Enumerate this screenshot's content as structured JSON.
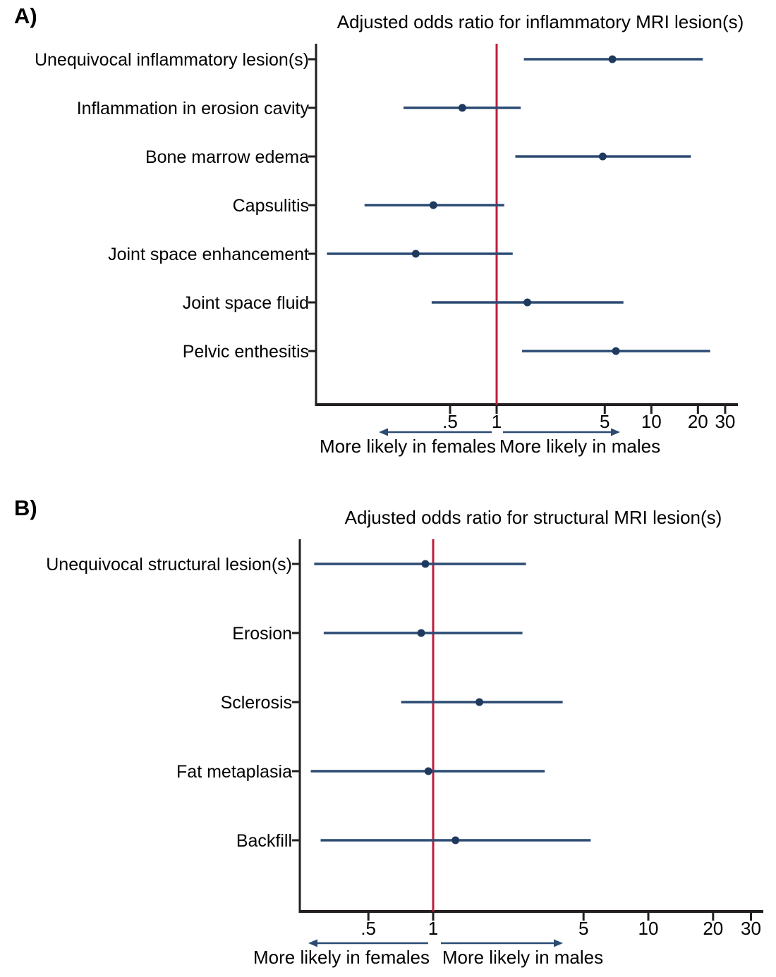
{
  "colors": {
    "ci_line": "#2c4b73",
    "marker": "#1e3a5f",
    "ref_line": "#be1e3c",
    "axis": "#231f20",
    "text": "#000000"
  },
  "chart_data": [
    {
      "type": "scatter",
      "subtype": "forest-plot",
      "panel_label": "A)",
      "title": "Adjusted odds ratio for inflammatory MRI lesion(s)",
      "xscale": "log",
      "xlim": [
        0.068,
        36
      ],
      "reference_line": 1,
      "x_ticks": [
        0.5,
        1,
        5,
        10,
        20,
        30
      ],
      "x_tick_labels": [
        ".5",
        "1",
        "5",
        "10",
        "20",
        "30"
      ],
      "grid": false,
      "rows": [
        {
          "label": "Unequivocal inflammatory lesion(s)",
          "estimate": 5.6,
          "ci_low": 1.5,
          "ci_high": 21.5
        },
        {
          "label": "Inflammation in erosion cavity",
          "estimate": 0.6,
          "ci_low": 0.25,
          "ci_high": 1.43
        },
        {
          "label": "Bone marrow edema",
          "estimate": 4.85,
          "ci_low": 1.32,
          "ci_high": 18.0
        },
        {
          "label": "Capsulitis",
          "estimate": 0.39,
          "ci_low": 0.14,
          "ci_high": 1.12
        },
        {
          "label": "Joint space enhancement",
          "estimate": 0.3,
          "ci_low": 0.08,
          "ci_high": 1.27
        },
        {
          "label": "Joint space fluid",
          "estimate": 1.58,
          "ci_low": 0.38,
          "ci_high": 6.6
        },
        {
          "label": "Pelvic enthesitis",
          "estimate": 5.9,
          "ci_low": 1.46,
          "ci_high": 24.0
        }
      ],
      "annotations": {
        "left": "More likely in females",
        "right": "More likely in males"
      }
    },
    {
      "type": "scatter",
      "subtype": "forest-plot",
      "panel_label": "B)",
      "title": "Adjusted odds ratio for structural MRI lesion(s)",
      "xscale": "log",
      "xlim": [
        0.24,
        34
      ],
      "reference_line": 1,
      "x_ticks": [
        0.5,
        1,
        5,
        10,
        20,
        30
      ],
      "x_tick_labels": [
        ".5",
        "1",
        "5",
        "10",
        "20",
        "30"
      ],
      "grid": false,
      "rows": [
        {
          "label": "Unequivocal structural lesion(s)",
          "estimate": 0.92,
          "ci_low": 0.28,
          "ci_high": 2.7
        },
        {
          "label": "Erosion",
          "estimate": 0.88,
          "ci_low": 0.31,
          "ci_high": 2.6
        },
        {
          "label": "Sclerosis",
          "estimate": 1.64,
          "ci_low": 0.71,
          "ci_high": 4.0
        },
        {
          "label": "Fat metaplasia",
          "estimate": 0.95,
          "ci_low": 0.27,
          "ci_high": 3.3
        },
        {
          "label": "Backfill",
          "estimate": 1.27,
          "ci_low": 0.3,
          "ci_high": 5.4
        }
      ],
      "annotations": {
        "left": "More likely in females",
        "right": "More likely in males"
      }
    }
  ]
}
